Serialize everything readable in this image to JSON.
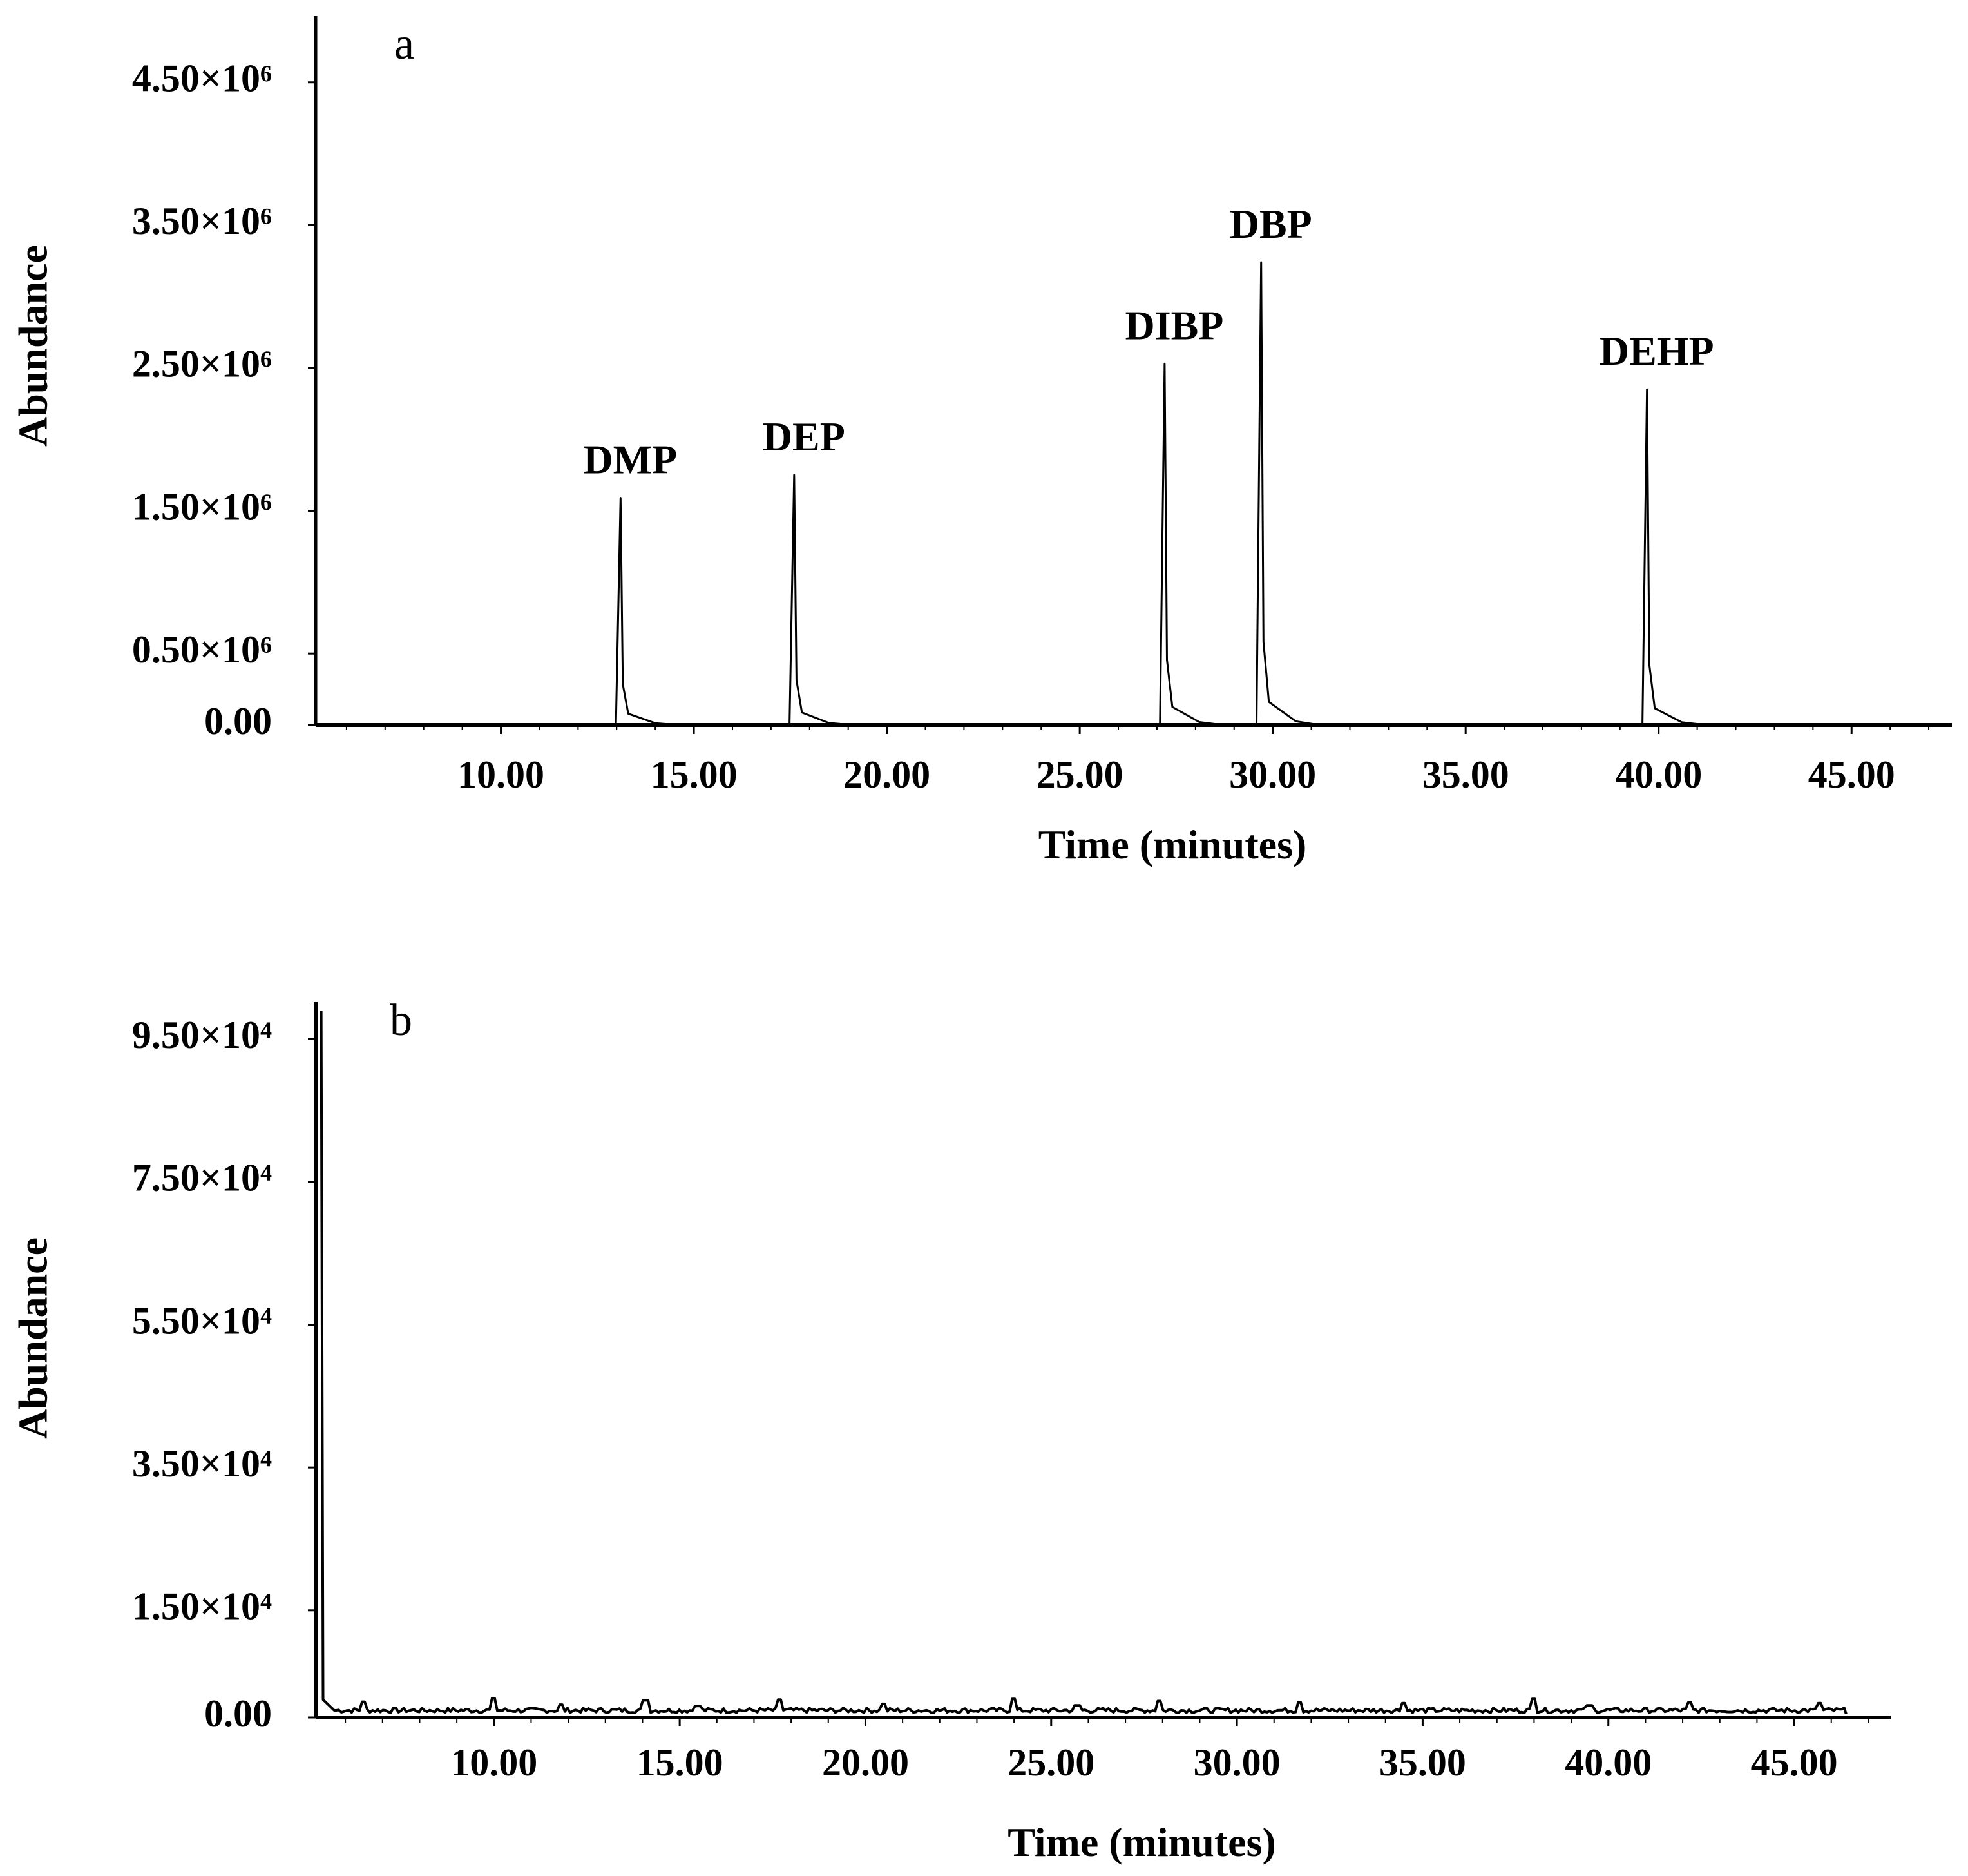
{
  "chart_data": [
    {
      "panel": "a",
      "type": "line",
      "xlabel": "Time (minutes)",
      "ylabel": "Abundance",
      "x_ticks": [
        "10.00",
        "15.00",
        "20.00",
        "25.00",
        "30.00",
        "35.00",
        "40.00",
        "45.00"
      ],
      "x_tick_values": [
        10,
        15,
        20,
        25,
        30,
        35,
        40,
        45
      ],
      "y_ticks": [
        "0.00",
        "0.50×10⁶",
        "1.50×10⁶",
        "2.50×10⁶",
        "3.50×10⁶",
        "4.50×10⁶"
      ],
      "y_tick_values": [
        0,
        500000,
        1500000,
        2500000,
        3500000,
        4500000
      ],
      "xlim": [
        5.2,
        47.6
      ],
      "ylim": [
        0,
        4950000
      ],
      "peaks": [
        {
          "label": "DMP",
          "x": 13.1,
          "y": 1590000
        },
        {
          "label": "DEP",
          "x": 17.6,
          "y": 1750000
        },
        {
          "label": "DIBP",
          "x": 27.2,
          "y": 2530000
        },
        {
          "label": "DBP",
          "x": 29.7,
          "y": 3240000
        },
        {
          "label": "DEHP",
          "x": 39.7,
          "y": 2350000
        }
      ]
    },
    {
      "panel": "b",
      "type": "line",
      "xlabel": "Time (minutes)",
      "ylabel": "Abundance",
      "x_ticks": [
        "10.00",
        "15.00",
        "20.00",
        "25.00",
        "30.00",
        "35.00",
        "40.00",
        "45.00"
      ],
      "x_tick_values": [
        10,
        15,
        20,
        25,
        30,
        35,
        40,
        45
      ],
      "y_ticks": [
        "0.00",
        "1.50×10⁴",
        "3.50×10⁴",
        "5.50×10⁴",
        "7.50×10⁴",
        "9.50×10⁴"
      ],
      "y_tick_values": [
        0,
        15000,
        35000,
        55000,
        75000,
        95000
      ],
      "xlim": [
        5.2,
        47.6
      ],
      "ylim": [
        0,
        99000
      ],
      "baseline": 1000,
      "initial_spike": {
        "x": 5.4,
        "y": 99000
      },
      "noise_bumps": [
        {
          "x": 6.5,
          "y": 2200
        },
        {
          "x": 10.0,
          "y": 2700
        },
        {
          "x": 11.8,
          "y": 1800
        },
        {
          "x": 14.1,
          "y": 2400
        },
        {
          "x": 15.5,
          "y": 1600
        },
        {
          "x": 17.7,
          "y": 2500
        },
        {
          "x": 20.5,
          "y": 1900
        },
        {
          "x": 24.0,
          "y": 2600
        },
        {
          "x": 25.7,
          "y": 1700
        },
        {
          "x": 27.9,
          "y": 2300
        },
        {
          "x": 31.7,
          "y": 2100
        },
        {
          "x": 34.5,
          "y": 2000
        },
        {
          "x": 38.0,
          "y": 2600
        },
        {
          "x": 39.5,
          "y": 1700
        },
        {
          "x": 42.2,
          "y": 2100
        },
        {
          "x": 45.7,
          "y": 2000
        }
      ]
    }
  ]
}
